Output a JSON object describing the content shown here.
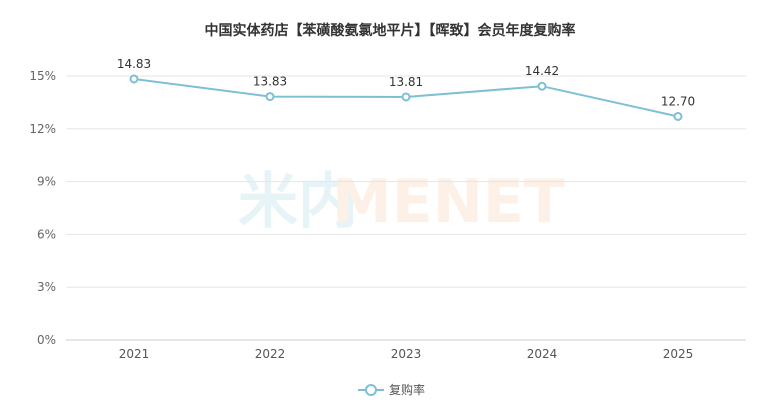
{
  "chart_data": {
    "type": "line",
    "title": "中国实体药店【苯磺酸氨氯地平片】【晖致】会员年度复购率",
    "categories": [
      "2021",
      "2022",
      "2023",
      "2024",
      "2025"
    ],
    "series": [
      {
        "name": "复购率",
        "values": [
          14.83,
          13.83,
          13.81,
          14.42,
          12.7
        ],
        "color": "#7fbfd6"
      }
    ],
    "data_labels": [
      "14.83",
      "13.83",
      "13.81",
      "14.42",
      "12.70"
    ],
    "ylim": [
      0,
      15
    ],
    "yticks": [
      {
        "value": 0,
        "label": "0%"
      },
      {
        "value": 3,
        "label": "3%"
      },
      {
        "value": 6,
        "label": "6%"
      },
      {
        "value": 9,
        "label": "9%"
      },
      {
        "value": 12,
        "label": "12%"
      },
      {
        "value": 15,
        "label": "15%"
      }
    ],
    "grid": true,
    "legend": "bottom-center"
  },
  "watermark": {
    "cn": "米内",
    "en": "MENET"
  }
}
